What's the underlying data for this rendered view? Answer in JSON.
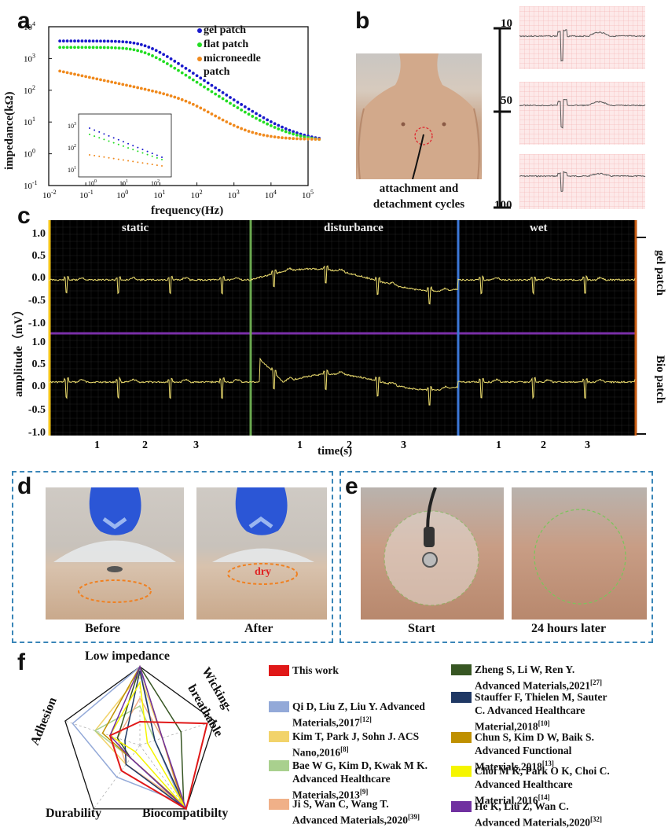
{
  "panel_a": {
    "label": "a",
    "legend": [
      "gel patch",
      "flat patch",
      "microneedle",
      "patch"
    ],
    "xlabel": "frequency(Hz)",
    "ylabel": "impedance(kΩ)",
    "xticks": [
      "10",
      "10",
      "10",
      "10",
      "10",
      "10",
      "10",
      "10"
    ],
    "xexp": [
      "-2",
      "-1",
      "0",
      "1",
      "2",
      "3",
      "4",
      "5"
    ],
    "yticks": [
      "10",
      "10",
      "10",
      "10",
      "10",
      "10"
    ],
    "yexp": [
      "4",
      "3",
      "2",
      "1",
      "0",
      "-1"
    ],
    "colors": {
      "gel": "#1a1acc",
      "flat": "#22dd22",
      "micro": "#f08a1e"
    },
    "inset_xexp": [
      "0",
      "1",
      "2"
    ],
    "inset_yexp": [
      "3",
      "2",
      "1"
    ]
  },
  "panel_b": {
    "label": "b",
    "caption_line1": "attachment and",
    "caption_line2": "detachment cycles",
    "cycles": [
      "10",
      "50",
      "100"
    ]
  },
  "panel_c": {
    "label": "c",
    "sections": [
      "static",
      "disturbance",
      "wet"
    ],
    "ylabel": "amplitude（mV）",
    "xlabel": "time(s)",
    "top_ticks": [
      "1.0",
      "0.5",
      "0.0",
      "-0.5",
      "-1.0"
    ],
    "bottom_ticks": [
      "1.0",
      "0.5",
      "0.0",
      "-0.5",
      "-1.0"
    ],
    "time_ticks": [
      "1",
      "2",
      "3",
      "1",
      "2",
      "3",
      "1",
      "2",
      "3"
    ],
    "right_labels": [
      "gel patch",
      "Bio patch"
    ]
  },
  "panel_d": {
    "label": "d",
    "captions": [
      "Before",
      "After"
    ],
    "dry_text": "dry"
  },
  "panel_e": {
    "label": "e",
    "captions": [
      "Start",
      "24 hours later"
    ]
  },
  "panel_f": {
    "label": "f",
    "axes": [
      "Low impedance",
      "Wicking-",
      "breathable",
      "Biocompatibilty",
      "Durability",
      "Adhesion"
    ],
    "legend": [
      {
        "color": "#e01818",
        "lines": [
          "This work"
        ]
      },
      {
        "color": "#93a9d8",
        "lines": [
          "Qi D, Liu Z, Liu Y. Advanced",
          "Materials,2017"
        ],
        "ref": "[12]"
      },
      {
        "color": "#f2d36a",
        "lines": [
          "Kim T, Park J, Sohn J. ACS",
          "Nano,2016"
        ],
        "ref": "[8]"
      },
      {
        "color": "#a9d08e",
        "lines": [
          "Bae W G, Kim D, Kwak M K.",
          "Advanced Healthcare",
          "Materials,2013"
        ],
        "ref": "[9]"
      },
      {
        "color": "#f0b088",
        "lines": [
          "Ji S, Wan C, Wang T.",
          "Advanced Materials,2020"
        ],
        "ref": "[39]"
      },
      {
        "color": "#375623",
        "lines": [
          "Zheng S, Li W, Ren Y.",
          "Advanced Materials,2021"
        ],
        "ref": "[27]"
      },
      {
        "color": "#1f3864",
        "lines": [
          "Stauffer F, Thielen M, Sauter",
          "C. Advanced Healthcare",
          "Material,2018"
        ],
        "ref": "[10]"
      },
      {
        "color": "#bf9000",
        "lines": [
          "Chun S, Kim D W, Baik S.",
          "Advanced Functional",
          "Materials,2018"
        ],
        "ref": "[13]"
      },
      {
        "color": "#f5f500",
        "lines": [
          "Choi M K, Park O K, Choi C.",
          "Advanced Healthcare",
          "Material,2016"
        ],
        "ref": "[14]"
      },
      {
        "color": "#7030a0",
        "lines": [
          "He K, Liu Z, Wan C.",
          "Advanced Materials,2020"
        ],
        "ref": "[32]"
      }
    ]
  }
}
